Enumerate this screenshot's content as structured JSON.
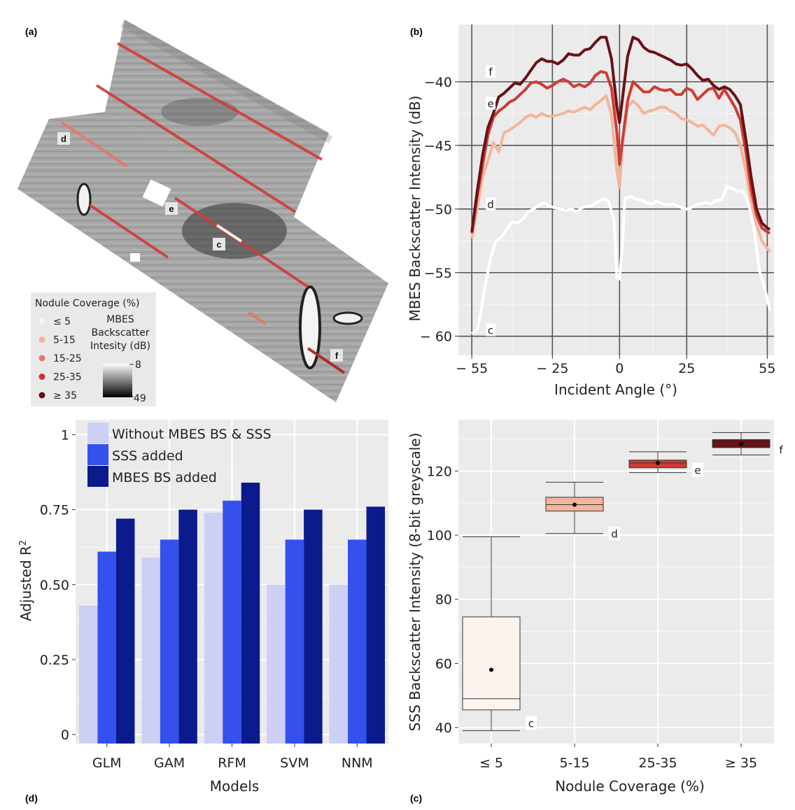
{
  "panels": {
    "a": "(a)",
    "b": "(b)",
    "c": "(c)",
    "d": "(d)"
  },
  "map": {
    "legend_title": "Nodule Coverage (%)",
    "legend_items": [
      {
        "label": "≤ 5",
        "color": "#fdf1ea"
      },
      {
        "label": "5-15",
        "color": "#f3b59b"
      },
      {
        "label": "15-25",
        "color": "#e47a63"
      },
      {
        "label": "25-35",
        "color": "#c8372c"
      },
      {
        "label": "≥ 35",
        "color": "#5e0d12"
      }
    ],
    "colorbar_title": [
      "MBES",
      "Backscatter",
      "Intesity (dB)"
    ],
    "colorbar_max": "8",
    "colorbar_min": "49",
    "site_labels": [
      "d",
      "e",
      "c",
      "f"
    ]
  },
  "chart_data": [
    {
      "id": "b",
      "type": "line",
      "xlabel": "Incident Angle (°)",
      "ylabel": "MBES  Backscatter Intensity (dB)",
      "xlim": [
        -60,
        57.5
      ],
      "ylim": [
        -61.5,
        -35.5
      ],
      "x_ticks": [
        -55,
        -25,
        0,
        25,
        55
      ],
      "x_tick_labels": [
        "− 55",
        "− 25",
        "0",
        "25",
        "55"
      ],
      "y_ticks": [
        -40,
        -45,
        -50,
        -55,
        -60
      ],
      "y_tick_labels": [
        "−40",
        "−45",
        "−50",
        "−55",
        "− 60"
      ],
      "series": [
        {
          "name": "c",
          "color": "#ffffff",
          "x": [
            -55,
            -53,
            -52,
            -50,
            -48,
            -46,
            -44,
            -42,
            -40,
            -38,
            -36,
            -34,
            -32,
            -30,
            -28,
            -26,
            -24,
            -22,
            -20,
            -18,
            -16,
            -14,
            -12,
            -10,
            -8,
            -6,
            -4,
            -2,
            -1,
            0,
            1,
            2,
            4,
            6,
            8,
            10,
            12,
            14,
            16,
            18,
            20,
            22,
            24,
            26,
            28,
            30,
            32,
            34,
            36,
            38,
            40,
            42,
            44,
            46,
            48,
            50,
            52,
            54,
            56
          ],
          "y": [
            -59.8,
            -59.5,
            -58.6,
            -56,
            -53.8,
            -52.5,
            -52.2,
            -51.6,
            -51,
            -51.1,
            -50.8,
            -50.2,
            -50,
            -49.7,
            -49.5,
            -49.8,
            -49.9,
            -50,
            -50.1,
            -50,
            -50.2,
            -49.9,
            -49.8,
            -49.7,
            -49.4,
            -49.2,
            -49.4,
            -51,
            -55.4,
            -55.5,
            -53,
            -49.2,
            -49,
            -49.2,
            -49.3,
            -49.5,
            -49.6,
            -49.4,
            -49.6,
            -49.7,
            -49.6,
            -49.8,
            -50,
            -50,
            -49.7,
            -49.6,
            -49.5,
            -49.6,
            -49.3,
            -49.3,
            -48.2,
            -48.4,
            -48.6,
            -48.6,
            -49.5,
            -51.5,
            -54.8,
            -56.2,
            -58
          ]
        },
        {
          "name": "d",
          "color": "#f3b59b",
          "x": [
            -55,
            -53,
            -51,
            -49,
            -47,
            -45,
            -43,
            -41,
            -39,
            -37,
            -35,
            -33,
            -31,
            -29,
            -27,
            -25,
            -23,
            -21,
            -19,
            -17,
            -15,
            -13,
            -11,
            -9,
            -7,
            -5,
            -3,
            -1,
            0,
            1,
            3,
            5,
            7,
            9,
            11,
            13,
            15,
            17,
            19,
            21,
            23,
            25,
            27,
            29,
            31,
            33,
            35,
            37,
            39,
            41,
            43,
            45,
            47,
            49,
            51,
            53,
            55,
            56
          ],
          "y": [
            -52.3,
            -50,
            -47.5,
            -46.2,
            -44.8,
            -45.5,
            -44,
            -43.8,
            -43.5,
            -43.2,
            -42.8,
            -42.6,
            -42.8,
            -42.5,
            -42.7,
            -42.7,
            -42.6,
            -42.5,
            -42.3,
            -42.4,
            -42.2,
            -42,
            -42.2,
            -41.8,
            -41.5,
            -41.1,
            -42.6,
            -47,
            -48.3,
            -45,
            -42,
            -41.5,
            -41.9,
            -42.5,
            -42.3,
            -42.2,
            -42,
            -42,
            -42.3,
            -42.5,
            -42.9,
            -43,
            -43.2,
            -43.5,
            -43.4,
            -43.8,
            -44.2,
            -43.5,
            -43.4,
            -43.6,
            -44,
            -45,
            -47,
            -49.5,
            -51.2,
            -52.5,
            -53.1,
            -53.4
          ]
        },
        {
          "name": "e",
          "color": "#cf3c34",
          "x": [
            -55,
            -53,
            -51,
            -49,
            -47,
            -45,
            -43,
            -41,
            -39,
            -37,
            -35,
            -33,
            -31,
            -29,
            -27,
            -25,
            -23,
            -21,
            -19,
            -17,
            -15,
            -13,
            -11,
            -9,
            -7,
            -5,
            -3,
            -1,
            0,
            1,
            3,
            5,
            7,
            9,
            11,
            13,
            15,
            17,
            19,
            21,
            23,
            25,
            27,
            29,
            31,
            33,
            35,
            37,
            39,
            41,
            43,
            45,
            47,
            49,
            51,
            53,
            55,
            56
          ],
          "y": [
            -51.9,
            -49,
            -46.6,
            -44.2,
            -42.8,
            -42.3,
            -42,
            -41.6,
            -41.4,
            -41,
            -40.6,
            -40.1,
            -40,
            -40.2,
            -40.5,
            -40.3,
            -40,
            -39.8,
            -40,
            -40.4,
            -40.2,
            -40.4,
            -40.1,
            -39.5,
            -39.2,
            -39.3,
            -40.5,
            -44,
            -46.5,
            -44.8,
            -41.5,
            -40,
            -40.4,
            -40.8,
            -40.8,
            -40.4,
            -40.6,
            -40.7,
            -40.6,
            -41,
            -41,
            -40.5,
            -40.7,
            -41.4,
            -41,
            -40.6,
            -40.5,
            -41.3,
            -40.6,
            -41.3,
            -42,
            -43,
            -45.5,
            -48.5,
            -50.5,
            -51.5,
            -51.8,
            -51.9
          ]
        },
        {
          "name": "f",
          "color": "#681218",
          "x": [
            -55,
            -53,
            -51,
            -49,
            -47,
            -45,
            -43,
            -41,
            -39,
            -37,
            -35,
            -33,
            -31,
            -29,
            -27,
            -25,
            -23,
            -21,
            -19,
            -17,
            -15,
            -13,
            -11,
            -9,
            -7,
            -5,
            -3,
            -1,
            0,
            1,
            3,
            5,
            7,
            9,
            11,
            13,
            15,
            17,
            19,
            21,
            23,
            25,
            27,
            29,
            31,
            33,
            35,
            37,
            39,
            41,
            43,
            45,
            47,
            49,
            51,
            53,
            55,
            56
          ],
          "y": [
            -51.8,
            -48.6,
            -45.8,
            -43.6,
            -42.5,
            -41.2,
            -40.9,
            -40.5,
            -40.1,
            -40.2,
            -39.7,
            -39.1,
            -38.5,
            -38.2,
            -38.4,
            -38.4,
            -38.6,
            -38.3,
            -37.8,
            -37.9,
            -37.9,
            -37.5,
            -37.4,
            -36.9,
            -36.5,
            -36.5,
            -38.2,
            -42,
            -43.2,
            -41.5,
            -38,
            -36.5,
            -36.7,
            -37.3,
            -37.6,
            -37.7,
            -37.9,
            -38.1,
            -38.3,
            -38.6,
            -38.7,
            -38.6,
            -39,
            -39.5,
            -39.9,
            -39.8,
            -40.3,
            -40.6,
            -40.4,
            -40.6,
            -41.1,
            -41.8,
            -44.5,
            -47.5,
            -50,
            -51.1,
            -51.5,
            -51.6
          ]
        }
      ],
      "line_labels": [
        {
          "text": "f",
          "x": -48,
          "y": -39.3
        },
        {
          "text": "e",
          "x": -48,
          "y": -41.8
        },
        {
          "text": "d",
          "x": -48,
          "y": -49.7
        },
        {
          "text": "c",
          "x": -48,
          "y": -59.6
        }
      ]
    },
    {
      "id": "d",
      "type": "bar",
      "xlabel": "Models",
      "ylabel": "Adjusted R",
      "ylabel_sup": "2",
      "categories": [
        "GLM",
        "GAM",
        "RFM",
        "SVM",
        "NNM"
      ],
      "ylim": [
        -0.03,
        1.05
      ],
      "y_ticks": [
        0,
        0.25,
        0.5,
        0.75,
        1
      ],
      "y_tick_labels": [
        "0",
        "0.25",
        "0.50",
        "0.75",
        "1"
      ],
      "legend": "top-left",
      "series": [
        {
          "name": "Without MBES BS & SSS",
          "color": "#ccd0f5",
          "values": [
            0.43,
            0.59,
            0.74,
            0.5,
            0.5
          ]
        },
        {
          "name": "SSS added",
          "color": "#3451ee",
          "values": [
            0.61,
            0.65,
            0.78,
            0.65,
            0.65
          ]
        },
        {
          "name": "MBES BS added",
          "color": "#0b1a8c",
          "values": [
            0.72,
            0.75,
            0.84,
            0.75,
            0.76
          ]
        }
      ]
    },
    {
      "id": "c",
      "type": "box",
      "xlabel": "Nodule Coverage (%)",
      "ylabel": "SSS  Backscatter Intensity (8-bit greyscale)",
      "categories": [
        "≤ 5",
        "5-15",
        "25-35",
        "≥ 35"
      ],
      "ylim": [
        35,
        136
      ],
      "y_ticks": [
        40,
        60,
        80,
        100,
        120
      ],
      "y_tick_labels": [
        "40",
        "60",
        "80",
        "100",
        "120"
      ],
      "boxes": [
        {
          "label": "c",
          "color": "#fcf3ef",
          "min": 39,
          "q1": 45.5,
          "median": 49,
          "q3": 74.5,
          "max": 99.5,
          "mean": 58
        },
        {
          "label": "d",
          "color": "#f3b59b",
          "min": 100.5,
          "q1": 107.5,
          "median": 109.5,
          "q3": 111.8,
          "max": 116.5,
          "mean": 109.5
        },
        {
          "label": "e",
          "color": "#cf3c34",
          "min": 119.5,
          "q1": 121,
          "median": 122.5,
          "q3": 123.4,
          "max": 126,
          "mean": 122.5
        },
        {
          "label": "f",
          "color": "#681218",
          "min": 125,
          "q1": 127.3,
          "median": 128.5,
          "q3": 129.8,
          "max": 132,
          "mean": 128.5
        }
      ]
    }
  ]
}
